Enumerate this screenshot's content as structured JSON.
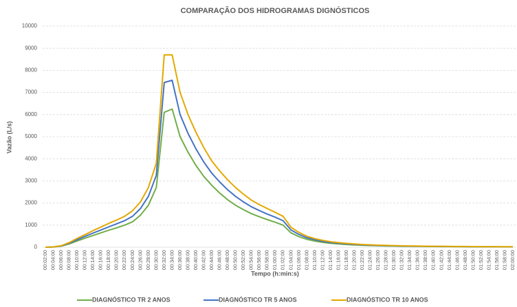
{
  "chart_data": {
    "type": "line",
    "title": "COMPARAÇÃO DOS HIDROGRAMAS DIGNÓSTICOS",
    "x_label": "Tempo (h:min:s)",
    "y_label": "Vazão (L/s)",
    "categories": [
      "00:02:00",
      "00:04:00",
      "00:06:00",
      "00:08:00",
      "00:10:00",
      "00:12:00",
      "00:14:00",
      "00:16:00",
      "00:18:00",
      "00:20:00",
      "00:22:00",
      "00:24:00",
      "00:26:00",
      "00:28:00",
      "00:30:00",
      "00:32:00",
      "00:34:00",
      "00:36:00",
      "00:38:00",
      "00:40:00",
      "00:42:00",
      "00:44:00",
      "00:46:00",
      "00:48:00",
      "00:50:00",
      "00:52:00",
      "00:54:00",
      "00:56:00",
      "00:58:00",
      "01:00:00",
      "01:02:00",
      "01:04:00",
      "01:06:00",
      "01:08:00",
      "01:10:00",
      "01:12:00",
      "01:14:00",
      "01:16:00",
      "01:18:00",
      "01:20:00",
      "01:22:00",
      "01:24:00",
      "01:26:00",
      "01:28:00",
      "01:30:00",
      "01:32:00",
      "01:34:00",
      "01:36:00",
      "01:38:00",
      "01:40:00",
      "01:42:00",
      "01:44:00",
      "01:46:00",
      "01:48:00",
      "01:50:00",
      "01:52:00",
      "01:54:00",
      "01:56:00",
      "01:58:00",
      "02:00:00"
    ],
    "series": [
      {
        "name": "DIAGNÓSTICO TR 2 ANOS",
        "color": "#70ad47",
        "values": [
          0,
          10,
          50,
          150,
          280,
          410,
          530,
          650,
          770,
          880,
          1000,
          1150,
          1450,
          1900,
          2700,
          6100,
          6250,
          5000,
          4300,
          3700,
          3200,
          2800,
          2450,
          2150,
          1900,
          1700,
          1520,
          1380,
          1250,
          1130,
          1000,
          650,
          480,
          360,
          280,
          220,
          180,
          150,
          125,
          105,
          90,
          78,
          68,
          60,
          53,
          47,
          42,
          38,
          34,
          31,
          29,
          27,
          25,
          23,
          21,
          20,
          19,
          18,
          17,
          16
        ]
      },
      {
        "name": "DIAGNÓSTICO TR 5 ANOS",
        "color": "#4472c4",
        "values": [
          0,
          12,
          60,
          180,
          340,
          490,
          640,
          780,
          920,
          1060,
          1200,
          1400,
          1750,
          2300,
          3250,
          7450,
          7550,
          6000,
          5150,
          4450,
          3850,
          3350,
          2950,
          2600,
          2300,
          2050,
          1830,
          1660,
          1500,
          1360,
          1200,
          780,
          580,
          430,
          340,
          265,
          215,
          180,
          150,
          126,
          108,
          94,
          82,
          72,
          64,
          56,
          50,
          46,
          41,
          37,
          35,
          32,
          30,
          28,
          25,
          24,
          23,
          22,
          20,
          19
        ]
      },
      {
        "name": "DIAGNÓSTICO TR 10 ANOS",
        "color": "#e3a800",
        "values": [
          0,
          14,
          70,
          210,
          400,
          570,
          750,
          910,
          1080,
          1230,
          1400,
          1650,
          2050,
          2700,
          3800,
          8700,
          8700,
          7000,
          6000,
          5200,
          4500,
          3900,
          3450,
          3050,
          2700,
          2400,
          2130,
          1930,
          1750,
          1580,
          1400,
          900,
          670,
          500,
          390,
          310,
          250,
          210,
          175,
          147,
          126,
          109,
          95,
          84,
          74,
          66,
          59,
          53,
          48,
          43,
          41,
          38,
          35,
          33,
          30,
          28,
          27,
          25,
          24,
          22
        ]
      }
    ],
    "ylim": [
      0,
      10000
    ],
    "yticks": [
      0,
      1000,
      2000,
      3000,
      4000,
      5000,
      6000,
      7000,
      8000,
      9000,
      10000
    ],
    "grid": true,
    "legend": "bottom"
  }
}
